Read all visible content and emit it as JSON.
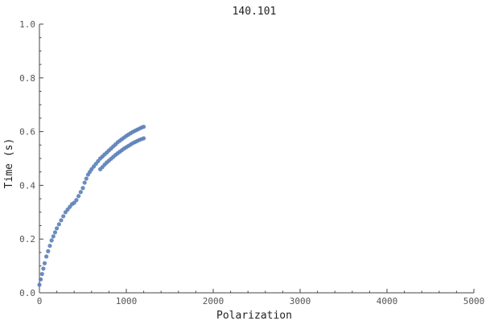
{
  "chart_data": {
    "type": "scatter",
    "title": "140.101",
    "xlabel": "Polarization",
    "ylabel": "Time (s)",
    "xlim": [
      0,
      5000
    ],
    "ylim": [
      0,
      1.0
    ],
    "x_ticks": [
      0,
      1000,
      2000,
      3000,
      4000,
      5000
    ],
    "x_tick_labels": [
      "0",
      "1000",
      "2000",
      "3000",
      "4000",
      "5000"
    ],
    "y_ticks": [
      0.0,
      0.2,
      0.4,
      0.6,
      0.8,
      1.0
    ],
    "y_tick_labels": [
      "0.0",
      "0.2",
      "0.4",
      "0.6",
      "0.8",
      "1.0"
    ],
    "grid": false,
    "legend": "none",
    "marker_color": "#5b7fb8",
    "series": [
      {
        "x": [
          0,
          15,
          30,
          45,
          60,
          80,
          100,
          120,
          140,
          160,
          180,
          200,
          225,
          250,
          275,
          300,
          325,
          350,
          375,
          400,
          425,
          450,
          475,
          500,
          520,
          540,
          560,
          580,
          600,
          625,
          650,
          675,
          700,
          725,
          750,
          775,
          800,
          825,
          850,
          875,
          900,
          925,
          950,
          975,
          1000,
          1025,
          1050,
          1075,
          1100,
          1125,
          1150,
          1175,
          1200,
          700,
          725,
          750,
          775,
          800,
          825,
          850,
          875,
          900,
          925,
          950,
          975,
          1000,
          1025,
          1050,
          1075,
          1100,
          1125,
          1150,
          1175,
          1200
        ],
        "y": [
          0.03,
          0.05,
          0.07,
          0.09,
          0.11,
          0.135,
          0.155,
          0.175,
          0.195,
          0.21,
          0.225,
          0.24,
          0.255,
          0.27,
          0.285,
          0.3,
          0.31,
          0.32,
          0.33,
          0.335,
          0.345,
          0.36,
          0.375,
          0.39,
          0.41,
          0.425,
          0.44,
          0.45,
          0.46,
          0.47,
          0.48,
          0.49,
          0.5,
          0.507,
          0.515,
          0.522,
          0.53,
          0.537,
          0.545,
          0.552,
          0.56,
          0.566,
          0.572,
          0.578,
          0.584,
          0.589,
          0.594,
          0.599,
          0.603,
          0.607,
          0.611,
          0.615,
          0.618,
          0.46,
          0.468,
          0.477,
          0.485,
          0.492,
          0.499,
          0.506,
          0.513,
          0.519,
          0.525,
          0.531,
          0.537,
          0.542,
          0.547,
          0.552,
          0.557,
          0.561,
          0.565,
          0.569,
          0.572,
          0.575
        ]
      }
    ]
  }
}
